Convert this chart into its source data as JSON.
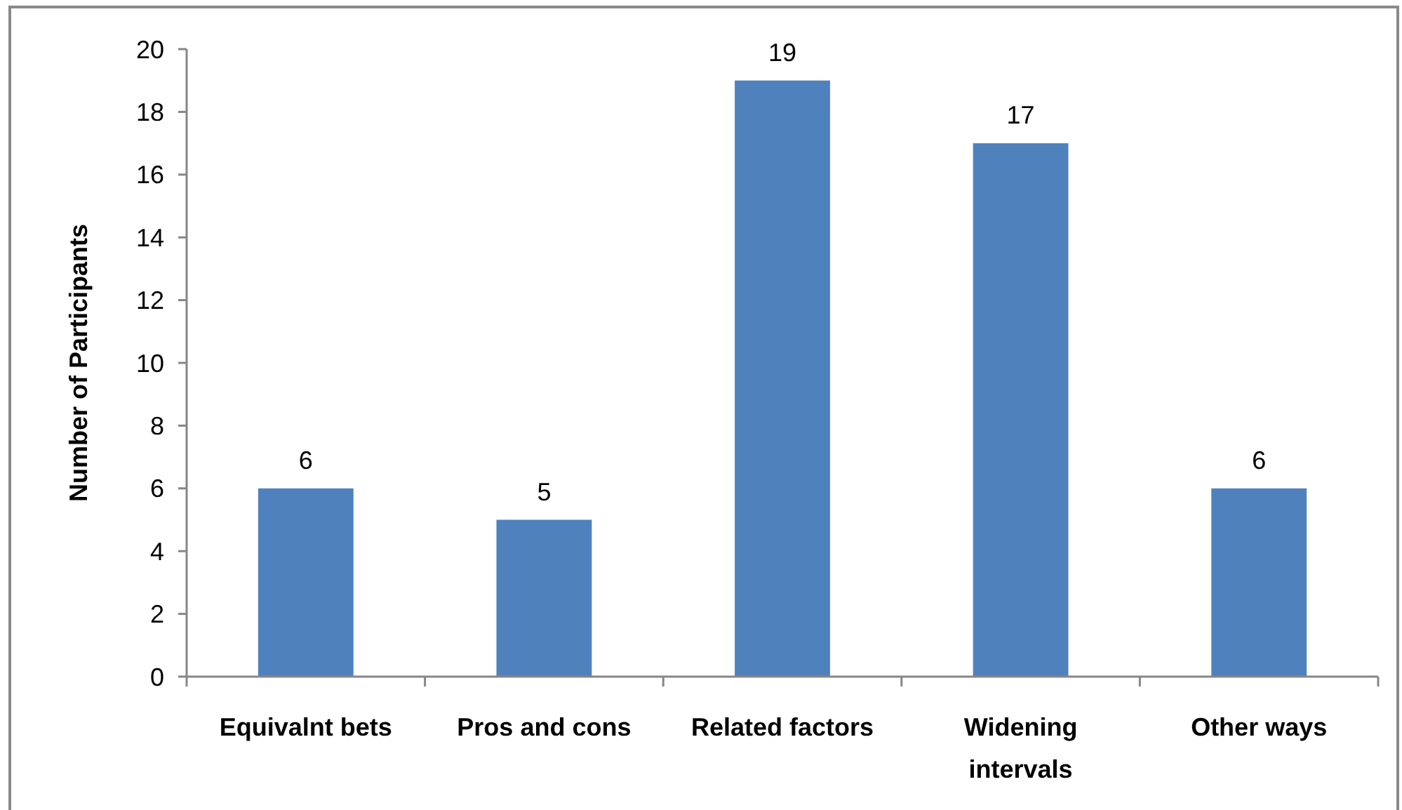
{
  "chart_data": {
    "type": "bar",
    "ylabel": "Number of Participants",
    "categories": [
      "Equivalnt bets",
      "Pros and cons",
      "Related factors",
      "Widening intervals",
      "Other ways"
    ],
    "values": [
      6,
      5,
      19,
      17,
      6
    ],
    "color": "#4f81bd",
    "ylim": [
      0,
      20
    ],
    "yticks": [
      0,
      2,
      4,
      6,
      8,
      10,
      12,
      14,
      16,
      18,
      20
    ],
    "data_labels": true
  }
}
